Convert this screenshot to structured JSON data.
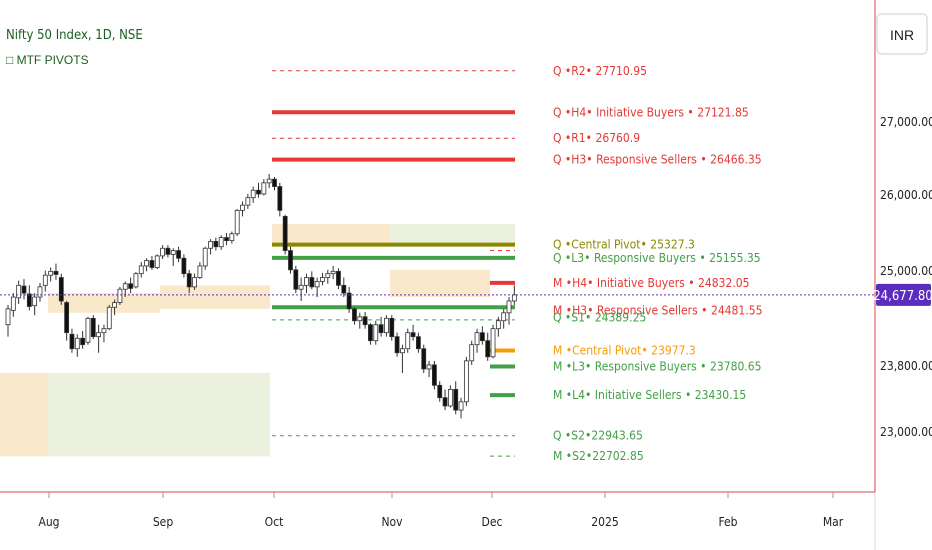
{
  "header": {
    "title": "Nifty 50 Index, 1D, NSE",
    "indicator": "□ MTF PIVOTS",
    "currency": "INR"
  },
  "colors": {
    "bull": "#ffffff",
    "bear": "#111111",
    "wick": "#333333",
    "red": "#e53935",
    "green": "#43a047",
    "orange": "#f59e0b",
    "olive": "#8a8a00",
    "price_tag": "#5b2dbf",
    "axis_border": "#e04050",
    "tan_fill": "#f6d9a8",
    "sage_fill": "#dfe6c8"
  },
  "chart_data": {
    "type": "candlestick",
    "title": "Nifty 50 Index, 1D, NSE",
    "xlabel": "",
    "ylabel": "",
    "ylim": [
      22400,
      28400
    ],
    "y_scale": "log",
    "y_ticks": [
      {
        "value": 27000,
        "label": "27,000.00"
      },
      {
        "value": 26000,
        "label": "26,000.00"
      },
      {
        "value": 25000,
        "label": "25,000.00"
      },
      {
        "value": 23800,
        "label": "23,800.00"
      },
      {
        "value": 23000,
        "label": "23,000.00"
      }
    ],
    "x_ticks": [
      "Aug",
      "Sep",
      "Oct",
      "Nov",
      "Dec",
      "2025",
      "Feb",
      "Mar"
    ],
    "last_price": 24677.8,
    "last_price_label": "24,677.80",
    "candles": [
      {
        "o": 24300,
        "h": 24550,
        "l": 24150,
        "c": 24500
      },
      {
        "o": 24480,
        "h": 24700,
        "l": 24400,
        "c": 24650
      },
      {
        "o": 24640,
        "h": 24860,
        "l": 24560,
        "c": 24800
      },
      {
        "o": 24790,
        "h": 24880,
        "l": 24620,
        "c": 24700
      },
      {
        "o": 24690,
        "h": 24800,
        "l": 24480,
        "c": 24530
      },
      {
        "o": 24540,
        "h": 24700,
        "l": 24420,
        "c": 24650
      },
      {
        "o": 24650,
        "h": 24830,
        "l": 24590,
        "c": 24780
      },
      {
        "o": 24800,
        "h": 24990,
        "l": 24720,
        "c": 24930
      },
      {
        "o": 24930,
        "h": 25030,
        "l": 24850,
        "c": 24980
      },
      {
        "o": 24980,
        "h": 25080,
        "l": 24870,
        "c": 24940
      },
      {
        "o": 24900,
        "h": 24950,
        "l": 24550,
        "c": 24600
      },
      {
        "o": 24580,
        "h": 24600,
        "l": 24100,
        "c": 24200
      },
      {
        "o": 24180,
        "h": 24250,
        "l": 23950,
        "c": 24000
      },
      {
        "o": 24000,
        "h": 24180,
        "l": 23900,
        "c": 24130
      },
      {
        "o": 24130,
        "h": 24220,
        "l": 24000,
        "c": 24050
      },
      {
        "o": 24080,
        "h": 24400,
        "l": 24050,
        "c": 24380
      },
      {
        "o": 24380,
        "h": 24420,
        "l": 24120,
        "c": 24150
      },
      {
        "o": 24150,
        "h": 24300,
        "l": 23950,
        "c": 24200
      },
      {
        "o": 24200,
        "h": 24300,
        "l": 24080,
        "c": 24250
      },
      {
        "o": 24250,
        "h": 24550,
        "l": 24230,
        "c": 24520
      },
      {
        "o": 24520,
        "h": 24620,
        "l": 24420,
        "c": 24580
      },
      {
        "o": 24580,
        "h": 24780,
        "l": 24550,
        "c": 24750
      },
      {
        "o": 24750,
        "h": 24850,
        "l": 24650,
        "c": 24820
      },
      {
        "o": 24820,
        "h": 24900,
        "l": 24700,
        "c": 24760
      },
      {
        "o": 24780,
        "h": 24970,
        "l": 24760,
        "c": 24950
      },
      {
        "o": 24950,
        "h": 25100,
        "l": 24900,
        "c": 25050
      },
      {
        "o": 25050,
        "h": 25150,
        "l": 24980,
        "c": 25120
      },
      {
        "o": 25120,
        "h": 25180,
        "l": 25000,
        "c": 25030
      },
      {
        "o": 25030,
        "h": 25200,
        "l": 25010,
        "c": 25180
      },
      {
        "o": 25180,
        "h": 25320,
        "l": 25140,
        "c": 25280
      },
      {
        "o": 25280,
        "h": 25320,
        "l": 25160,
        "c": 25200
      },
      {
        "o": 25200,
        "h": 25280,
        "l": 25050,
        "c": 25250
      },
      {
        "o": 25250,
        "h": 25300,
        "l": 25100,
        "c": 25150
      },
      {
        "o": 25150,
        "h": 25200,
        "l": 24900,
        "c": 24950
      },
      {
        "o": 24950,
        "h": 25000,
        "l": 24700,
        "c": 24780
      },
      {
        "o": 24780,
        "h": 24950,
        "l": 24740,
        "c": 24900
      },
      {
        "o": 24900,
        "h": 25100,
        "l": 24880,
        "c": 25050
      },
      {
        "o": 25050,
        "h": 25300,
        "l": 25000,
        "c": 25280
      },
      {
        "o": 25280,
        "h": 25400,
        "l": 25200,
        "c": 25370
      },
      {
        "o": 25370,
        "h": 25420,
        "l": 25250,
        "c": 25300
      },
      {
        "o": 25300,
        "h": 25450,
        "l": 25260,
        "c": 25420
      },
      {
        "o": 25420,
        "h": 25480,
        "l": 25320,
        "c": 25380
      },
      {
        "o": 25380,
        "h": 25500,
        "l": 25340,
        "c": 25470
      },
      {
        "o": 25470,
        "h": 25800,
        "l": 25440,
        "c": 25780
      },
      {
        "o": 25780,
        "h": 25900,
        "l": 25700,
        "c": 25850
      },
      {
        "o": 25850,
        "h": 26000,
        "l": 25800,
        "c": 25950
      },
      {
        "o": 25950,
        "h": 26100,
        "l": 25880,
        "c": 26050
      },
      {
        "o": 26050,
        "h": 26150,
        "l": 25950,
        "c": 26000
      },
      {
        "o": 26000,
        "h": 26200,
        "l": 25980,
        "c": 26150
      },
      {
        "o": 26150,
        "h": 26270,
        "l": 26080,
        "c": 26200
      },
      {
        "o": 26200,
        "h": 26230,
        "l": 26050,
        "c": 26100
      },
      {
        "o": 26100,
        "h": 26150,
        "l": 25700,
        "c": 25780
      },
      {
        "o": 25700,
        "h": 25720,
        "l": 25200,
        "c": 25250
      },
      {
        "o": 25250,
        "h": 25300,
        "l": 24950,
        "c": 25000
      },
      {
        "o": 25000,
        "h": 25050,
        "l": 24700,
        "c": 24750
      },
      {
        "o": 24750,
        "h": 24900,
        "l": 24600,
        "c": 24800
      },
      {
        "o": 24800,
        "h": 24950,
        "l": 24700,
        "c": 24900
      },
      {
        "o": 24900,
        "h": 24980,
        "l": 24750,
        "c": 24780
      },
      {
        "o": 24780,
        "h": 24900,
        "l": 24650,
        "c": 24850
      },
      {
        "o": 24850,
        "h": 24960,
        "l": 24800,
        "c": 24900
      },
      {
        "o": 24900,
        "h": 25000,
        "l": 24820,
        "c": 24950
      },
      {
        "o": 24950,
        "h": 25050,
        "l": 24880,
        "c": 24980
      },
      {
        "o": 24980,
        "h": 25020,
        "l": 24750,
        "c": 24800
      },
      {
        "o": 24800,
        "h": 24900,
        "l": 24650,
        "c": 24700
      },
      {
        "o": 24700,
        "h": 24780,
        "l": 24450,
        "c": 24500
      },
      {
        "o": 24500,
        "h": 24520,
        "l": 24300,
        "c": 24350
      },
      {
        "o": 24350,
        "h": 24450,
        "l": 24250,
        "c": 24400
      },
      {
        "o": 24400,
        "h": 24460,
        "l": 24250,
        "c": 24300
      },
      {
        "o": 24300,
        "h": 24320,
        "l": 24050,
        "c": 24100
      },
      {
        "o": 24100,
        "h": 24350,
        "l": 24050,
        "c": 24300
      },
      {
        "o": 24300,
        "h": 24400,
        "l": 24150,
        "c": 24200
      },
      {
        "o": 24200,
        "h": 24420,
        "l": 24150,
        "c": 24380
      },
      {
        "o": 24380,
        "h": 24420,
        "l": 24100,
        "c": 24150
      },
      {
        "o": 24150,
        "h": 24200,
        "l": 23900,
        "c": 23950
      },
      {
        "o": 23950,
        "h": 24050,
        "l": 23700,
        "c": 24000
      },
      {
        "o": 24000,
        "h": 24250,
        "l": 23950,
        "c": 24200
      },
      {
        "o": 24200,
        "h": 24300,
        "l": 24100,
        "c": 24150
      },
      {
        "o": 24150,
        "h": 24200,
        "l": 23950,
        "c": 24000
      },
      {
        "o": 24000,
        "h": 24050,
        "l": 23700,
        "c": 23750
      },
      {
        "o": 23750,
        "h": 23850,
        "l": 23650,
        "c": 23800
      },
      {
        "o": 23800,
        "h": 23850,
        "l": 23500,
        "c": 23550
      },
      {
        "o": 23550,
        "h": 23600,
        "l": 23350,
        "c": 23400
      },
      {
        "o": 23400,
        "h": 23500,
        "l": 23250,
        "c": 23300
      },
      {
        "o": 23300,
        "h": 23550,
        "l": 23280,
        "c": 23500
      },
      {
        "o": 23500,
        "h": 23600,
        "l": 23200,
        "c": 23250
      },
      {
        "o": 23250,
        "h": 23400,
        "l": 23150,
        "c": 23350
      },
      {
        "o": 23350,
        "h": 23900,
        "l": 23300,
        "c": 23850
      },
      {
        "o": 23850,
        "h": 24100,
        "l": 23800,
        "c": 24050
      },
      {
        "o": 24050,
        "h": 24250,
        "l": 23950,
        "c": 24200
      },
      {
        "o": 24200,
        "h": 24280,
        "l": 24050,
        "c": 24100
      },
      {
        "o": 24100,
        "h": 24200,
        "l": 23850,
        "c": 23900
      },
      {
        "o": 23900,
        "h": 24300,
        "l": 23880,
        "c": 24250
      },
      {
        "o": 24250,
        "h": 24400,
        "l": 24150,
        "c": 24350
      },
      {
        "o": 24350,
        "h": 24500,
        "l": 24250,
        "c": 24450
      },
      {
        "o": 24450,
        "h": 24650,
        "l": 24300,
        "c": 24600
      },
      {
        "o": 24600,
        "h": 24800,
        "l": 24550,
        "c": 24677.8
      }
    ],
    "pivot_lines": [
      {
        "y": 27710.95,
        "color": "red",
        "style": "dashed",
        "x1": 272,
        "x2": 515
      },
      {
        "y": 27121.85,
        "color": "red",
        "style": "solid",
        "x1": 272,
        "x2": 515
      },
      {
        "y": 26760.9,
        "color": "red",
        "style": "dashed",
        "x1": 272,
        "x2": 515
      },
      {
        "y": 26466.35,
        "color": "red",
        "style": "solid",
        "x1": 272,
        "x2": 515
      },
      {
        "y": 25327.3,
        "color": "olive",
        "style": "solid",
        "x1": 272,
        "x2": 515
      },
      {
        "y": 25250,
        "color": "red",
        "style": "dashed",
        "x1": 490,
        "x2": 515
      },
      {
        "y": 25155.35,
        "color": "green",
        "style": "solid",
        "x1": 272,
        "x2": 515
      },
      {
        "y": 24832.05,
        "color": "red",
        "style": "solid",
        "x1": 490,
        "x2": 515
      },
      {
        "y": 24520,
        "color": "green",
        "style": "solid",
        "x1": 272,
        "x2": 515
      },
      {
        "y": 24360,
        "color": "green",
        "style": "dashed",
        "x1": 272,
        "x2": 515
      },
      {
        "y": 23977.3,
        "color": "orange",
        "style": "solid",
        "x1": 490,
        "x2": 515
      },
      {
        "y": 23780.65,
        "color": "green",
        "style": "solid",
        "x1": 490,
        "x2": 515
      },
      {
        "y": 23430.15,
        "color": "green",
        "style": "solid",
        "x1": 490,
        "x2": 515
      },
      {
        "y": 22943.65,
        "color": "green",
        "style": "dashed",
        "x1": 272,
        "x2": 515
      },
      {
        "y": 22702.85,
        "color": "green",
        "style": "dashed",
        "x1": 490,
        "x2": 515
      }
    ],
    "pivot_labels": [
      {
        "text": "Q •R2• 27710.95",
        "color": "red",
        "y": 27710.95
      },
      {
        "text": "Q •H4• Initiative Buyers • 27121.85",
        "color": "red",
        "y": 27121.85
      },
      {
        "text": "Q •R1• 26760.9",
        "color": "red",
        "y": 26760.9
      },
      {
        "text": "Q •H3• Responsive Sellers • 26466.35",
        "color": "red",
        "y": 26466.35
      },
      {
        "text": "Q •Central Pivot• 25327.3",
        "color": "olive",
        "y": 25327.3
      },
      {
        "text": "Q •L3• Responsive Buyers • 25155.35",
        "color": "green",
        "y": 25155.35
      },
      {
        "text": "M •H4• Initiative Buyers • 24832.05",
        "color": "red",
        "y": 24832.05
      },
      {
        "text": "M •H3• Responsive Sellers • 24481.55",
        "color": "red",
        "y": 24481.55
      },
      {
        "text": "Q •S1• 24389.25",
        "color": "green",
        "y": 24389.25
      },
      {
        "text": "M •Central Pivot• 23977.3",
        "color": "orange",
        "y": 23977.3
      },
      {
        "text": "M •L3• Responsive Buyers • 23780.65",
        "color": "green",
        "y": 23780.65
      },
      {
        "text": "M •L4• Initiative Sellers • 23430.15",
        "color": "green",
        "y": 23430.15
      },
      {
        "text": "Q •S2•22943.65",
        "color": "green",
        "y": 22943.65
      },
      {
        "text": "M •S2•22702.85",
        "color": "green",
        "y": 22702.85
      }
    ],
    "zones": [
      {
        "x1": 0,
        "x2": 48,
        "y_top": 23700,
        "y_bot": 22700,
        "fill": "tan"
      },
      {
        "x1": 48,
        "x2": 270,
        "y_top": 23700,
        "y_bot": 22700,
        "fill": "sage"
      },
      {
        "x1": 48,
        "x2": 160,
        "y_top": 24700,
        "y_bot": 24450,
        "fill": "tan"
      },
      {
        "x1": 160,
        "x2": 270,
        "y_top": 24800,
        "y_bot": 24500,
        "fill": "tan"
      },
      {
        "x1": 272,
        "x2": 390,
        "y_top": 25600,
        "y_bot": 25300,
        "fill": "tan"
      },
      {
        "x1": 390,
        "x2": 515,
        "y_top": 25600,
        "y_bot": 25300,
        "fill": "sage"
      },
      {
        "x1": 390,
        "x2": 490,
        "y_top": 25000,
        "y_bot": 24650,
        "fill": "tan"
      }
    ]
  }
}
